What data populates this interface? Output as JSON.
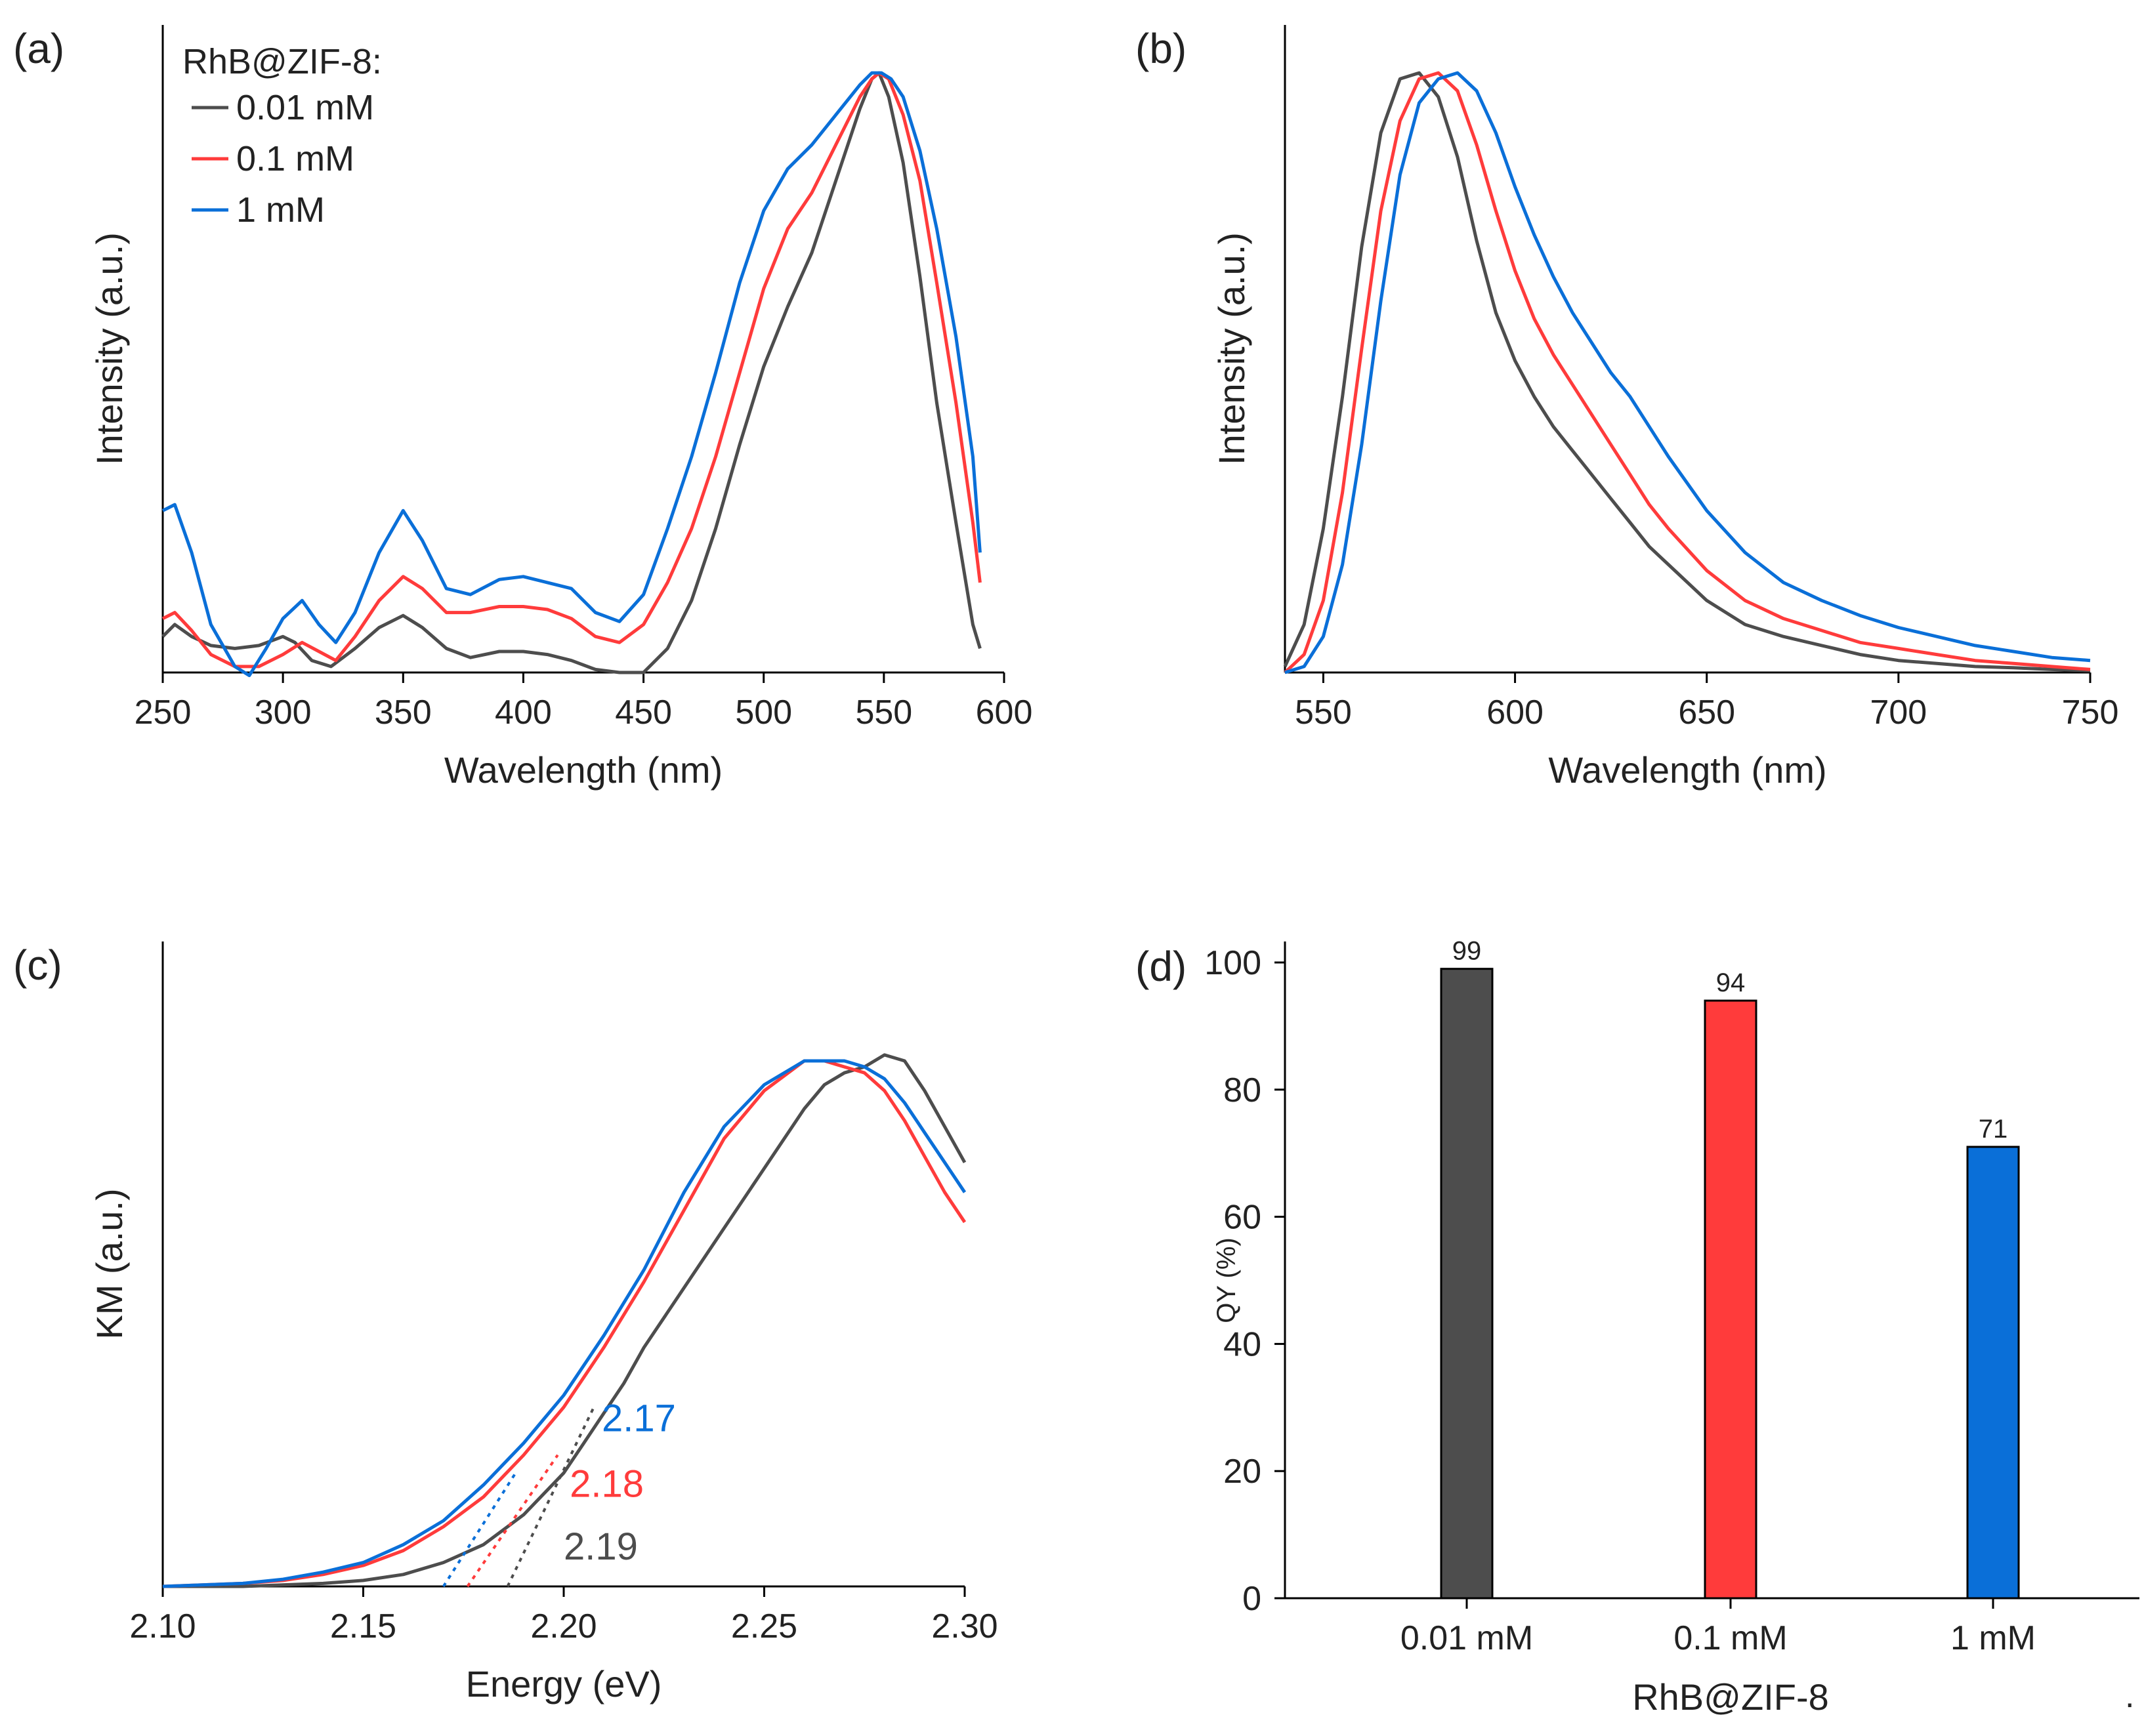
{
  "figure_end_mark": ".",
  "colors": {
    "c001": "#4d4d4d",
    "c01": "#ff3b3b",
    "c1": "#0a6fd8",
    "axis": "#000000"
  },
  "chart_data": [
    {
      "id": "a",
      "type": "line",
      "panel_label": "(a)",
      "xlabel": "Wavelength (nm)",
      "ylabel": "Intensity (a.u.)",
      "xlim": [
        250,
        600
      ],
      "ylim": [
        0,
        1.08
      ],
      "xticks": [
        250,
        300,
        350,
        400,
        450,
        500,
        550,
        600
      ],
      "legend_title": "RhB@ZIF-8:",
      "legend": [
        "0.01 mM",
        "0.1 mM",
        "1 mM"
      ],
      "series": [
        {
          "name": "0.01 mM",
          "color": "#4d4d4d",
          "x": [
            250,
            255,
            262,
            270,
            280,
            290,
            300,
            305,
            312,
            320,
            330,
            340,
            350,
            358,
            368,
            378,
            390,
            400,
            410,
            420,
            430,
            440,
            450,
            460,
            470,
            480,
            490,
            500,
            510,
            520,
            530,
            540,
            545,
            548,
            552,
            558,
            565,
            572,
            580,
            587,
            590
          ],
          "y": [
            0.06,
            0.08,
            0.06,
            0.045,
            0.04,
            0.045,
            0.06,
            0.05,
            0.02,
            0.01,
            0.04,
            0.075,
            0.095,
            0.075,
            0.04,
            0.025,
            0.035,
            0.035,
            0.03,
            0.02,
            0.005,
            0.0,
            0.0,
            0.04,
            0.12,
            0.24,
            0.38,
            0.51,
            0.61,
            0.7,
            0.82,
            0.94,
            0.99,
            1.0,
            0.96,
            0.85,
            0.66,
            0.45,
            0.25,
            0.08,
            0.04
          ]
        },
        {
          "name": "0.1 mM",
          "color": "#ff3b3b",
          "x": [
            250,
            255,
            262,
            270,
            280,
            290,
            300,
            308,
            315,
            322,
            330,
            340,
            350,
            358,
            368,
            378,
            390,
            400,
            410,
            420,
            430,
            440,
            450,
            460,
            470,
            480,
            490,
            500,
            510,
            520,
            530,
            540,
            545,
            548,
            552,
            558,
            565,
            572,
            580,
            587,
            590
          ],
          "y": [
            0.09,
            0.1,
            0.07,
            0.03,
            0.01,
            0.01,
            0.03,
            0.05,
            0.035,
            0.02,
            0.06,
            0.12,
            0.16,
            0.14,
            0.1,
            0.1,
            0.11,
            0.11,
            0.105,
            0.09,
            0.06,
            0.05,
            0.08,
            0.15,
            0.24,
            0.36,
            0.5,
            0.64,
            0.74,
            0.8,
            0.88,
            0.96,
            0.99,
            1.0,
            0.99,
            0.93,
            0.82,
            0.65,
            0.45,
            0.25,
            0.15
          ]
        },
        {
          "name": "1 mM",
          "color": "#0a6fd8",
          "x": [
            250,
            255,
            262,
            270,
            280,
            286,
            293,
            300,
            308,
            315,
            322,
            330,
            340,
            350,
            358,
            368,
            378,
            390,
            400,
            410,
            420,
            430,
            440,
            450,
            460,
            470,
            480,
            490,
            500,
            510,
            520,
            530,
            540,
            545,
            549,
            553,
            558,
            565,
            572,
            580,
            587,
            590
          ],
          "y": [
            0.27,
            0.28,
            0.2,
            0.08,
            0.01,
            -0.005,
            0.04,
            0.09,
            0.12,
            0.08,
            0.05,
            0.1,
            0.2,
            0.27,
            0.22,
            0.14,
            0.13,
            0.155,
            0.16,
            0.15,
            0.14,
            0.1,
            0.085,
            0.13,
            0.24,
            0.36,
            0.5,
            0.65,
            0.77,
            0.84,
            0.88,
            0.93,
            0.98,
            1.0,
            1.0,
            0.99,
            0.96,
            0.87,
            0.74,
            0.56,
            0.36,
            0.2
          ]
        }
      ]
    },
    {
      "id": "b",
      "type": "line",
      "panel_label": "(b)",
      "xlabel": "Wavelength (nm)",
      "ylabel": "Intensity (a.u.)",
      "xlim": [
        540,
        750
      ],
      "ylim": [
        0,
        1.08
      ],
      "xticks": [
        550,
        600,
        650,
        700,
        750
      ],
      "series": [
        {
          "name": "0.01 mM",
          "color": "#4d4d4d",
          "x": [
            540,
            545,
            550,
            555,
            560,
            565,
            570,
            575,
            580,
            585,
            590,
            595,
            600,
            605,
            610,
            615,
            620,
            625,
            630,
            635,
            640,
            650,
            660,
            670,
            680,
            690,
            700,
            710,
            720,
            730,
            740,
            750
          ],
          "y": [
            0.01,
            0.08,
            0.24,
            0.46,
            0.71,
            0.9,
            0.99,
            1.0,
            0.96,
            0.86,
            0.72,
            0.6,
            0.52,
            0.46,
            0.41,
            0.37,
            0.33,
            0.29,
            0.25,
            0.21,
            0.18,
            0.12,
            0.08,
            0.06,
            0.045,
            0.03,
            0.02,
            0.015,
            0.01,
            0.008,
            0.005,
            0.003
          ]
        },
        {
          "name": "0.1 mM",
          "color": "#ff3b3b",
          "x": [
            540,
            545,
            550,
            555,
            560,
            565,
            570,
            575,
            580,
            585,
            590,
            595,
            600,
            605,
            610,
            615,
            620,
            625,
            630,
            635,
            640,
            650,
            660,
            670,
            680,
            690,
            700,
            710,
            720,
            730,
            740,
            750
          ],
          "y": [
            0.0,
            0.03,
            0.12,
            0.3,
            0.54,
            0.77,
            0.92,
            0.99,
            1.0,
            0.97,
            0.88,
            0.77,
            0.67,
            0.59,
            0.53,
            0.48,
            0.43,
            0.38,
            0.33,
            0.28,
            0.24,
            0.17,
            0.12,
            0.09,
            0.07,
            0.05,
            0.04,
            0.03,
            0.02,
            0.015,
            0.01,
            0.005
          ]
        },
        {
          "name": "1 mM",
          "color": "#0a6fd8",
          "x": [
            540,
            545,
            550,
            555,
            560,
            565,
            570,
            575,
            580,
            585,
            590,
            595,
            600,
            605,
            610,
            615,
            620,
            625,
            630,
            635,
            640,
            650,
            660,
            670,
            680,
            690,
            700,
            710,
            720,
            730,
            740,
            750
          ],
          "y": [
            0.0,
            0.01,
            0.06,
            0.18,
            0.38,
            0.62,
            0.83,
            0.95,
            0.99,
            1.0,
            0.97,
            0.9,
            0.81,
            0.73,
            0.66,
            0.6,
            0.55,
            0.5,
            0.46,
            0.41,
            0.36,
            0.27,
            0.2,
            0.15,
            0.12,
            0.095,
            0.075,
            0.06,
            0.045,
            0.035,
            0.025,
            0.02
          ]
        }
      ]
    },
    {
      "id": "c",
      "type": "line",
      "panel_label": "(c)",
      "xlabel": "Energy (eV)",
      "ylabel": "KM (a.u.)",
      "xlim": [
        2.1,
        2.3
      ],
      "ylim": [
        0,
        1.08
      ],
      "xticks": [
        "2.10",
        "2.15",
        "2.20",
        "2.25",
        "2.30"
      ],
      "series": [
        {
          "name": "0.01 mM",
          "color": "#4d4d4d",
          "x": [
            2.1,
            2.12,
            2.14,
            2.15,
            2.16,
            2.17,
            2.18,
            2.19,
            2.2,
            2.205,
            2.21,
            2.215,
            2.22,
            2.23,
            2.24,
            2.25,
            2.26,
            2.265,
            2.27,
            2.275,
            2.28,
            2.285,
            2.29,
            2.295,
            2.3
          ],
          "y": [
            0.0,
            0.0,
            0.005,
            0.01,
            0.02,
            0.04,
            0.07,
            0.12,
            0.19,
            0.24,
            0.29,
            0.34,
            0.4,
            0.5,
            0.6,
            0.7,
            0.8,
            0.84,
            0.86,
            0.87,
            0.89,
            0.88,
            0.83,
            0.77,
            0.71
          ]
        },
        {
          "name": "0.1 mM",
          "color": "#ff3b3b",
          "x": [
            2.1,
            2.12,
            2.13,
            2.14,
            2.15,
            2.16,
            2.17,
            2.18,
            2.19,
            2.2,
            2.21,
            2.22,
            2.23,
            2.24,
            2.25,
            2.26,
            2.265,
            2.27,
            2.275,
            2.28,
            2.285,
            2.29,
            2.295,
            2.3
          ],
          "y": [
            0.0,
            0.005,
            0.01,
            0.02,
            0.035,
            0.06,
            0.1,
            0.15,
            0.22,
            0.3,
            0.4,
            0.51,
            0.63,
            0.75,
            0.83,
            0.88,
            0.88,
            0.87,
            0.86,
            0.83,
            0.78,
            0.72,
            0.66,
            0.61
          ]
        },
        {
          "name": "1 mM",
          "color": "#0a6fd8",
          "x": [
            2.1,
            2.12,
            2.13,
            2.14,
            2.15,
            2.16,
            2.17,
            2.18,
            2.19,
            2.2,
            2.21,
            2.22,
            2.23,
            2.24,
            2.25,
            2.26,
            2.265,
            2.27,
            2.275,
            2.28,
            2.285,
            2.29,
            2.295,
            2.3
          ],
          "y": [
            0.0,
            0.005,
            0.012,
            0.024,
            0.04,
            0.07,
            0.11,
            0.17,
            0.24,
            0.32,
            0.42,
            0.53,
            0.66,
            0.77,
            0.84,
            0.88,
            0.88,
            0.88,
            0.87,
            0.85,
            0.81,
            0.76,
            0.71,
            0.66
          ]
        }
      ],
      "onset_fits": [
        {
          "name": "1 mM",
          "color": "#0a6fd8",
          "x": [
            2.17,
            2.188
          ],
          "y": [
            0.0,
            0.19
          ],
          "label": "2.17",
          "label_at": [
            2.2095,
            0.26
          ]
        },
        {
          "name": "0.1 mM",
          "color": "#ff3b3b",
          "x": [
            2.176,
            2.1985
          ],
          "y": [
            0.0,
            0.22
          ],
          "label": "2.18",
          "label_at": [
            2.2015,
            0.15
          ]
        },
        {
          "name": "0.01 mM",
          "color": "#4d4d4d",
          "x": [
            2.186,
            2.2075
          ],
          "y": [
            0.0,
            0.3
          ],
          "label": "2.19",
          "label_at": [
            2.2,
            0.045
          ]
        }
      ]
    },
    {
      "id": "d",
      "type": "bar",
      "panel_label": "(d)",
      "xlabel": "RhB@ZIF-8",
      "ylabel": "QY (%)",
      "ylim": [
        0,
        100
      ],
      "yticks": [
        0,
        20,
        40,
        60,
        80,
        100
      ],
      "categories": [
        "0.01 mM",
        "0.1 mM",
        "1 mM"
      ],
      "values": [
        99,
        94,
        71
      ],
      "value_labels": [
        "99",
        "94",
        "71"
      ],
      "bar_colors": [
        "#4d4d4d",
        "#ff3b3b",
        "#0a6fd8"
      ]
    }
  ]
}
